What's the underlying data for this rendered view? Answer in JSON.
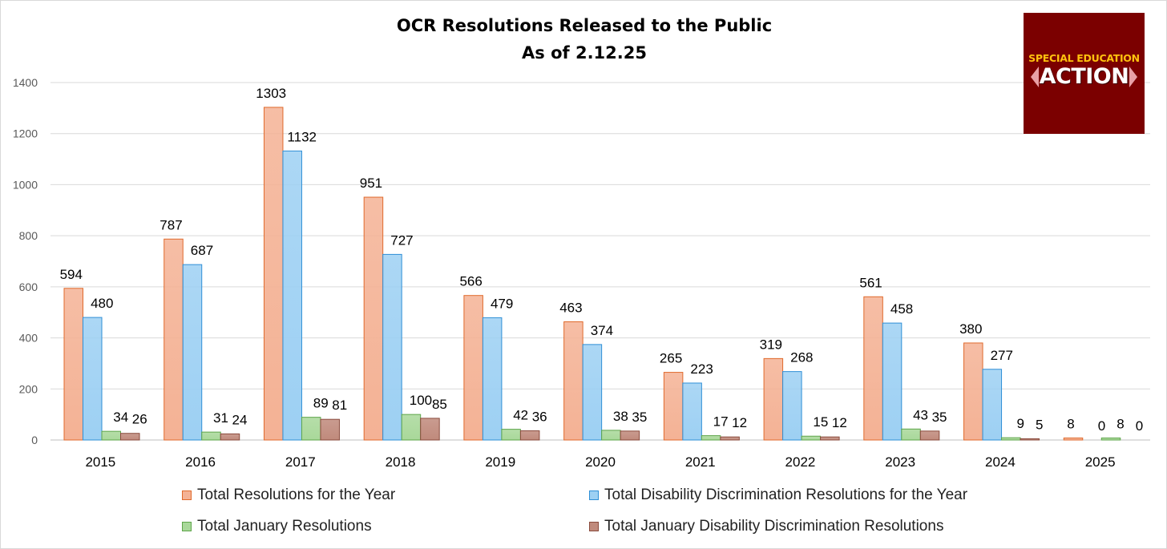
{
  "chart_data": {
    "type": "bar",
    "title": "OCR Resolutions Released to the Public",
    "subtitle": "As of 2.12.25",
    "categories": [
      "2015",
      "2016",
      "2017",
      "2018",
      "2019",
      "2020",
      "2021",
      "2022",
      "2023",
      "2024",
      "2025"
    ],
    "series": [
      {
        "name": "Total Resolutions for the Year",
        "values": [
          594,
          787,
          1303,
          951,
          566,
          463,
          265,
          319,
          561,
          380,
          8
        ],
        "color": "#f4b295",
        "stroke": "#e06a2c"
      },
      {
        "name": "Total Disability Discrimination Resolutions for the Year",
        "values": [
          480,
          687,
          1132,
          727,
          479,
          374,
          223,
          268,
          458,
          277,
          0
        ],
        "color": "#9dd0f3",
        "stroke": "#2f8fd6"
      },
      {
        "name": "Total January Resolutions",
        "values": [
          34,
          31,
          89,
          100,
          42,
          38,
          17,
          15,
          43,
          9,
          8
        ],
        "color": "#a9d89a",
        "stroke": "#5ea54a"
      },
      {
        "name": "Total January Disability Discrimination Resolutions",
        "values": [
          26,
          24,
          81,
          85,
          36,
          35,
          12,
          12,
          35,
          5,
          0
        ],
        "color": "#c08a7c",
        "stroke": "#8a4b3d"
      }
    ],
    "y_ticks": [
      "0",
      "200",
      "400",
      "600",
      "800",
      "1000",
      "1200",
      "1400"
    ],
    "ylim": [
      0,
      1400
    ],
    "xlabel": "",
    "ylabel": "",
    "grid": true,
    "legend_position": "bottom"
  },
  "logo": {
    "line1": "SPECIAL EDUCATION",
    "line2": "ACTION",
    "bg_color": "#7b0000"
  }
}
